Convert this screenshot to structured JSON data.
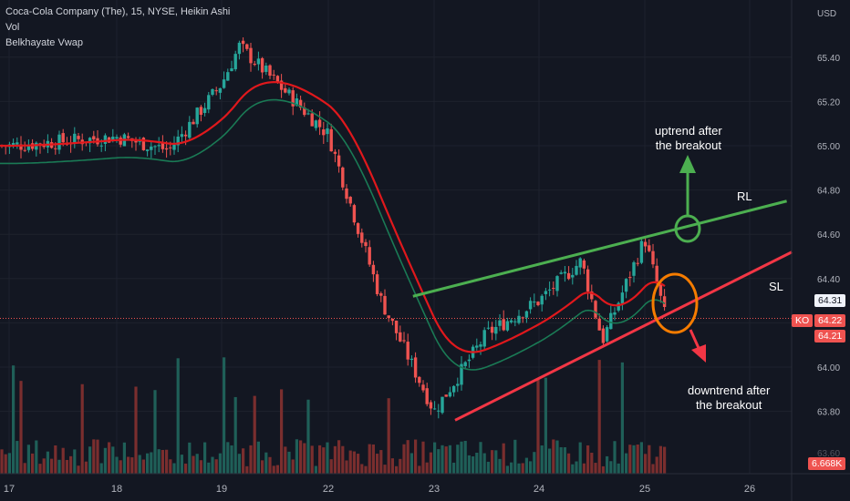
{
  "legend": {
    "line1": "Coca-Cola Company (The), 15, NYSE, Heikin Ashi",
    "line2": "Vol",
    "line3": "Belkhayate Vwap"
  },
  "annotations": {
    "uptrend_line1": "uptrend after",
    "uptrend_line2": "the breakout",
    "downtrend_line1": "downtrend after",
    "downtrend_line2": "the breakout",
    "rl": "RL",
    "sl": "SL"
  },
  "price_tags": {
    "symbol": "KO",
    "last": "64.22",
    "close": "64.21",
    "cursor": "64.31",
    "volume": "6.668K",
    "volume_axis": "63.60"
  },
  "colors": {
    "up": "#26a69a",
    "down": "#ef5350",
    "vwap": "#e0181c",
    "support_line": "#f23645",
    "resistance_line": "#4caf50",
    "circle_up": "#4caf50",
    "circle_down": "#f57c00",
    "background": "#131722",
    "axis_text": "#b2b5be"
  },
  "chart_data": {
    "type": "candlestick",
    "title": "Coca-Cola Company (The), 15, NYSE, Heikin Ashi",
    "currency": "USD",
    "x_ticks": [
      "17",
      "18",
      "19",
      "22",
      "23",
      "24",
      "25",
      "26"
    ],
    "y_ticks": [
      "65.40",
      "65.20",
      "65.00",
      "64.80",
      "64.60",
      "64.40",
      "64.20",
      "64.00",
      "63.80"
    ],
    "ylim": [
      63.58,
      65.55
    ],
    "key_points": [
      {
        "label": "17",
        "close": 65.0
      },
      {
        "label": "17.5",
        "close": 65.02
      },
      {
        "label": "18",
        "close": 65.04
      },
      {
        "label": "18.5",
        "close": 64.98
      },
      {
        "label": "19",
        "close": 65.28
      },
      {
        "label": "19.5",
        "close": 65.45
      },
      {
        "label": "22",
        "close": 65.05
      },
      {
        "label": "22.5",
        "close": 64.3
      },
      {
        "label": "23",
        "close": 63.8
      },
      {
        "label": "23.5",
        "close": 64.15
      },
      {
        "label": "24",
        "close": 64.3
      },
      {
        "label": "24.4",
        "close": 64.48
      },
      {
        "label": "24.6",
        "close": 64.12
      },
      {
        "label": "25",
        "close": 64.58
      },
      {
        "label": "25.2",
        "close": 64.22
      }
    ],
    "trendlines": [
      {
        "name": "RL",
        "from": [
          22.8,
          64.32
        ],
        "to": [
          26.35,
          64.75
        ]
      },
      {
        "name": "SL",
        "from": [
          23.2,
          63.76
        ],
        "to": [
          26.4,
          64.52
        ]
      }
    ],
    "last_price": 64.22,
    "last_volume": "6.668K"
  }
}
